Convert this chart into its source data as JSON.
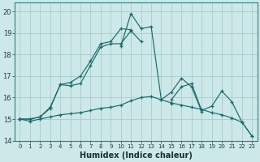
{
  "title": "",
  "xlabel": "Humidex (Indice chaleur)",
  "xlim": [
    -0.5,
    23.5
  ],
  "ylim": [
    14.0,
    20.4
  ],
  "yticks": [
    14,
    15,
    16,
    17,
    18,
    19,
    20
  ],
  "xticks": [
    0,
    1,
    2,
    3,
    4,
    5,
    6,
    7,
    8,
    9,
    10,
    11,
    12,
    13,
    14,
    15,
    16,
    17,
    18,
    19,
    20,
    21,
    22,
    23
  ],
  "background_color": "#cce8e8",
  "grid_color": "#aacccc",
  "line_color": "#1a6b6b",
  "series": [
    [
      15.0,
      14.9,
      15.0,
      15.1,
      15.2,
      15.25,
      15.3,
      15.4,
      15.5,
      15.55,
      15.65,
      15.85,
      16.0,
      16.05,
      15.9,
      15.75,
      15.65,
      15.55,
      15.45,
      15.3,
      15.2,
      15.05,
      14.85,
      14.2
    ],
    [
      15.0,
      15.0,
      15.1,
      15.5,
      16.6,
      16.55,
      16.65,
      17.5,
      18.35,
      18.5,
      18.5,
      19.1,
      18.6,
      null,
      null,
      15.9,
      16.5,
      16.65,
      15.4,
      15.6,
      16.3,
      15.8,
      14.85,
      14.2
    ],
    [
      15.0,
      15.0,
      15.1,
      15.55,
      16.6,
      16.7,
      17.0,
      17.7,
      18.5,
      18.6,
      19.2,
      19.15,
      null,
      null,
      null,
      15.7,
      null,
      null,
      null,
      null,
      null,
      null,
      null,
      null
    ],
    [
      15.0,
      null,
      null,
      null,
      null,
      null,
      null,
      null,
      null,
      null,
      18.4,
      19.9,
      19.2,
      19.3,
      15.9,
      16.25,
      16.9,
      16.5,
      15.35,
      null,
      null,
      null,
      null,
      null
    ]
  ]
}
